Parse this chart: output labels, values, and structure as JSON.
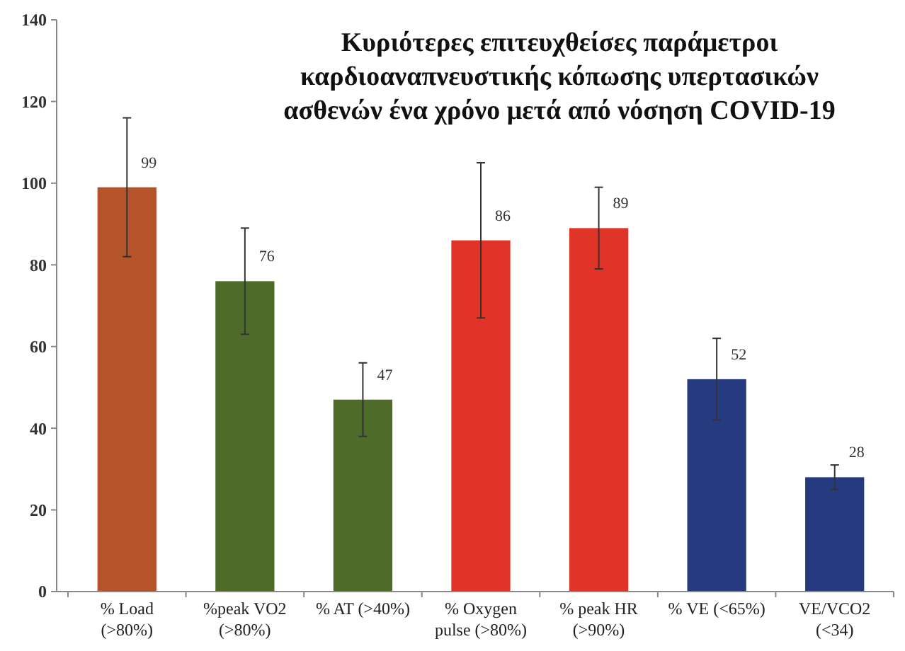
{
  "chart_data": {
    "type": "bar",
    "title": "Κυριότερες επιτευχθείσες παράμετροι\nκαρδιοαναπνευστικής κόπωσης υπερτασικών\nασθενών ένα χρόνο μετά από νόσηση COVID-19",
    "categories": [
      "% Load\n(>80%)",
      "%peak VO2\n(>80%)",
      "% AT (>40%)",
      "% Oxygen\npulse (>80%)",
      "% peak HR\n(>90%)",
      "% VE (<65%)",
      "VE/VCO2\n(<34)"
    ],
    "values": [
      99,
      76,
      47,
      86,
      89,
      52,
      28
    ],
    "colors": [
      "#b5532a",
      "#4f6b2a",
      "#4f6b2a",
      "#e03428",
      "#e03428",
      "#263a80",
      "#263a80"
    ],
    "errors": [
      17,
      13,
      9,
      19,
      10,
      10,
      3
    ],
    "data_labels": true,
    "grid": false,
    "ylim": [
      0,
      140
    ],
    "yticks": [
      0,
      20,
      40,
      60,
      80,
      100,
      120,
      140
    ]
  }
}
